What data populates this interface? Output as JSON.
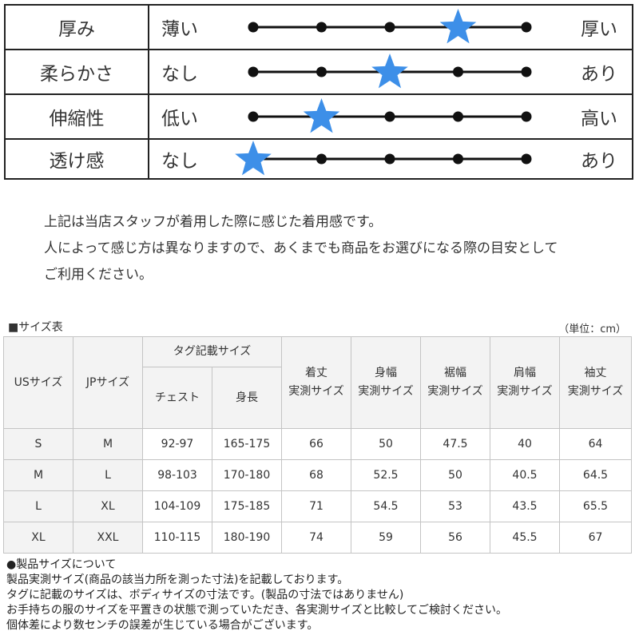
{
  "feel": {
    "rows": [
      {
        "name": "厚み",
        "low": "薄い",
        "high": "厚い",
        "level": 4,
        "steps": 5
      },
      {
        "name": "柔らかさ",
        "low": "なし",
        "high": "あり",
        "level": 3,
        "steps": 5
      },
      {
        "name": "伸縮性",
        "low": "低い",
        "high": "高い",
        "level": 2,
        "steps": 5
      },
      {
        "name": "透け感",
        "low": "なし",
        "high": "あり",
        "level": 1,
        "steps": 5
      }
    ],
    "star_color": "#3d8fe8",
    "line_color": "#111111"
  },
  "note": {
    "lines": [
      "上記は当店スタッフが着用した際に感じた着用感です。",
      "人によって感じ方は異なりますので、あくまでも商品をお選びになる際の目安として",
      "ご利用ください。"
    ]
  },
  "size_table": {
    "heading": "■サイズ表",
    "unit": "（単位：cm）",
    "headers": {
      "us": "USサイズ",
      "jp": "JPサイズ",
      "tag": "タグ記載サイズ",
      "chest": "チェスト",
      "height": "身長",
      "length": [
        "着丈",
        "実測サイズ"
      ],
      "width": [
        "身幅",
        "実測サイズ"
      ],
      "hem": [
        "裾幅",
        "実測サイズ"
      ],
      "shoulder": [
        "肩幅",
        "実測サイズ"
      ],
      "sleeve": [
        "袖丈",
        "実測サイズ"
      ]
    },
    "rows": [
      [
        "S",
        "M",
        "92-97",
        "165-175",
        "66",
        "50",
        "47.5",
        "40",
        "64"
      ],
      [
        "M",
        "L",
        "98-103",
        "170-180",
        "68",
        "52.5",
        "50",
        "40.5",
        "64.5"
      ],
      [
        "L",
        "XL",
        "104-109",
        "175-185",
        "71",
        "54.5",
        "53",
        "43.5",
        "65.5"
      ],
      [
        "XL",
        "XXL",
        "110-115",
        "180-190",
        "74",
        "59",
        "56",
        "45.5",
        "67"
      ]
    ]
  },
  "footnotes": [
    "●製品サイズについて",
    "製品実測サイズ(商品の該当力所を測った寸法)を記載しております。",
    "タグに記載のサイズは、ボディサイズの寸法です。(製品の寸法ではありません)",
    "お手持ちの服のサイズを平置きの状態で測っていただき、各実測サイズと比較してご検討ください。",
    "個体差により数センチの誤差が生じている場合がございます。"
  ]
}
